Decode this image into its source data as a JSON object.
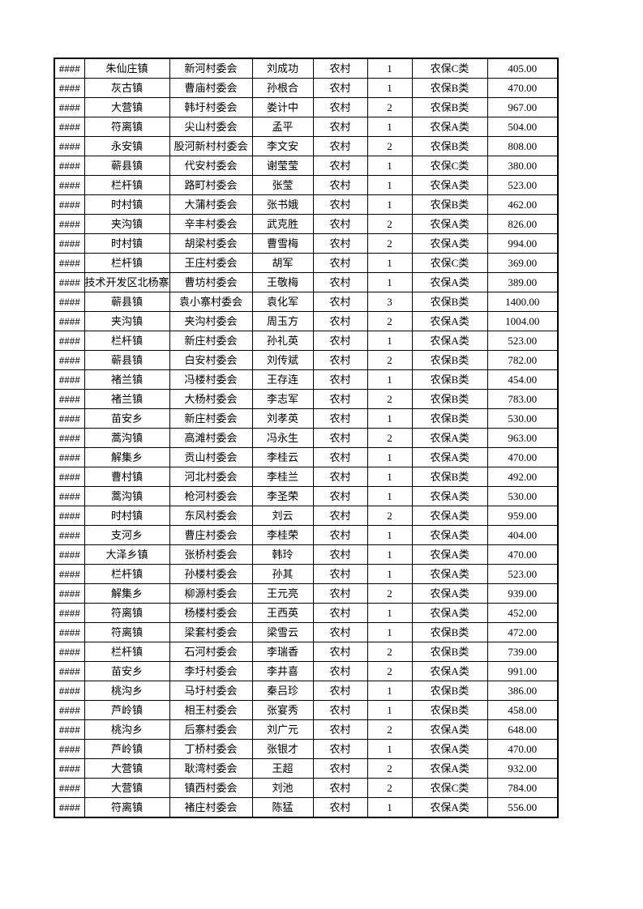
{
  "page": {
    "background": "#ffffff",
    "text_color": "#000000",
    "border_color": "#000000"
  },
  "table": {
    "rows": [
      {
        "overflow": "####",
        "town": "朱仙庄镇",
        "village": "新河村委会",
        "person": "刘成功",
        "area": "农村",
        "count": "1",
        "category": "农保C类",
        "amount": "405.00"
      },
      {
        "overflow": "####",
        "town": "灰古镇",
        "village": "曹庙村委会",
        "person": "孙根合",
        "area": "农村",
        "count": "1",
        "category": "农保B类",
        "amount": "470.00"
      },
      {
        "overflow": "####",
        "town": "大营镇",
        "village": "韩圩村委会",
        "person": "娄计中",
        "area": "农村",
        "count": "2",
        "category": "农保B类",
        "amount": "967.00"
      },
      {
        "overflow": "####",
        "town": "符离镇",
        "village": "尖山村委会",
        "person": "孟平",
        "area": "农村",
        "count": "1",
        "category": "农保A类",
        "amount": "504.00"
      },
      {
        "overflow": "####",
        "town": "永安镇",
        "village": "股河新村村委会",
        "person": "李文安",
        "area": "农村",
        "count": "2",
        "category": "农保B类",
        "amount": "808.00"
      },
      {
        "overflow": "####",
        "town": "蕲县镇",
        "village": "代安村委会",
        "person": "谢莹莹",
        "area": "农村",
        "count": "1",
        "category": "农保C类",
        "amount": "380.00"
      },
      {
        "overflow": "####",
        "town": "栏杆镇",
        "village": "路町村委会",
        "person": "张莹",
        "area": "农村",
        "count": "1",
        "category": "农保A类",
        "amount": "523.00"
      },
      {
        "overflow": "####",
        "town": "时村镇",
        "village": "大蒲村委会",
        "person": "张书娥",
        "area": "农村",
        "count": "1",
        "category": "农保B类",
        "amount": "462.00"
      },
      {
        "overflow": "####",
        "town": "夹沟镇",
        "village": "辛丰村委会",
        "person": "武克胜",
        "area": "农村",
        "count": "2",
        "category": "农保A类",
        "amount": "826.00"
      },
      {
        "overflow": "####",
        "town": "时村镇",
        "village": "胡梁村委会",
        "person": "曹雪梅",
        "area": "农村",
        "count": "2",
        "category": "农保A类",
        "amount": "994.00"
      },
      {
        "overflow": "####",
        "town": "栏杆镇",
        "village": "王庄村委会",
        "person": "胡军",
        "area": "农村",
        "count": "1",
        "category": "农保C类",
        "amount": "369.00"
      },
      {
        "overflow": "####",
        "town": "技术开发区北杨寨",
        "village": "曹坊村委会",
        "person": "王敬梅",
        "area": "农村",
        "count": "1",
        "category": "农保A类",
        "amount": "389.00"
      },
      {
        "overflow": "####",
        "town": "蕲县镇",
        "village": "袁小寨村委会",
        "person": "袁化军",
        "area": "农村",
        "count": "3",
        "category": "农保B类",
        "amount": "1400.00"
      },
      {
        "overflow": "####",
        "town": "夹沟镇",
        "village": "夹沟村委会",
        "person": "周玉方",
        "area": "农村",
        "count": "2",
        "category": "农保A类",
        "amount": "1004.00"
      },
      {
        "overflow": "####",
        "town": "栏杆镇",
        "village": "新庄村委会",
        "person": "孙礼英",
        "area": "农村",
        "count": "1",
        "category": "农保A类",
        "amount": "523.00"
      },
      {
        "overflow": "####",
        "town": "蕲县镇",
        "village": "白安村委会",
        "person": "刘传斌",
        "area": "农村",
        "count": "2",
        "category": "农保B类",
        "amount": "782.00"
      },
      {
        "overflow": "####",
        "town": "褚兰镇",
        "village": "冯楼村委会",
        "person": "王存连",
        "area": "农村",
        "count": "1",
        "category": "农保B类",
        "amount": "454.00"
      },
      {
        "overflow": "####",
        "town": "褚兰镇",
        "village": "大杨村委会",
        "person": "李志军",
        "area": "农村",
        "count": "2",
        "category": "农保B类",
        "amount": "783.00"
      },
      {
        "overflow": "####",
        "town": "苗安乡",
        "village": "新庄村委会",
        "person": "刘孝英",
        "area": "农村",
        "count": "1",
        "category": "农保B类",
        "amount": "530.00"
      },
      {
        "overflow": "####",
        "town": "蒿沟镇",
        "village": "高滩村委会",
        "person": "冯永生",
        "area": "农村",
        "count": "2",
        "category": "农保A类",
        "amount": "963.00"
      },
      {
        "overflow": "####",
        "town": "解集乡",
        "village": "贡山村委会",
        "person": "李桂云",
        "area": "农村",
        "count": "1",
        "category": "农保A类",
        "amount": "470.00"
      },
      {
        "overflow": "####",
        "town": "曹村镇",
        "village": "河北村委会",
        "person": "李桂兰",
        "area": "农村",
        "count": "1",
        "category": "农保B类",
        "amount": "492.00"
      },
      {
        "overflow": "####",
        "town": "蒿沟镇",
        "village": "枪河村委会",
        "person": "李圣荣",
        "area": "农村",
        "count": "1",
        "category": "农保A类",
        "amount": "530.00"
      },
      {
        "overflow": "####",
        "town": "时村镇",
        "village": "东风村委会",
        "person": "刘云",
        "area": "农村",
        "count": "2",
        "category": "农保A类",
        "amount": "959.00"
      },
      {
        "overflow": "####",
        "town": "支河乡",
        "village": "曹庄村委会",
        "person": "李桂荣",
        "area": "农村",
        "count": "1",
        "category": "农保A类",
        "amount": "404.00"
      },
      {
        "overflow": "####",
        "town": "大泽乡镇",
        "village": "张桥村委会",
        "person": "韩玲",
        "area": "农村",
        "count": "1",
        "category": "农保A类",
        "amount": "470.00"
      },
      {
        "overflow": "####",
        "town": "栏杆镇",
        "village": "孙楼村委会",
        "person": "孙其",
        "area": "农村",
        "count": "1",
        "category": "农保A类",
        "amount": "523.00"
      },
      {
        "overflow": "####",
        "town": "解集乡",
        "village": "柳源村委会",
        "person": "王元亮",
        "area": "农村",
        "count": "2",
        "category": "农保A类",
        "amount": "939.00"
      },
      {
        "overflow": "####",
        "town": "符离镇",
        "village": "杨楼村委会",
        "person": "王西英",
        "area": "农村",
        "count": "1",
        "category": "农保A类",
        "amount": "452.00"
      },
      {
        "overflow": "####",
        "town": "符离镇",
        "village": "梁套村委会",
        "person": "梁雪云",
        "area": "农村",
        "count": "1",
        "category": "农保B类",
        "amount": "472.00"
      },
      {
        "overflow": "####",
        "town": "栏杆镇",
        "village": "石河村委会",
        "person": "李瑞香",
        "area": "农村",
        "count": "2",
        "category": "农保B类",
        "amount": "739.00"
      },
      {
        "overflow": "####",
        "town": "苗安乡",
        "village": "李圩村委会",
        "person": "李井喜",
        "area": "农村",
        "count": "2",
        "category": "农保A类",
        "amount": "991.00"
      },
      {
        "overflow": "####",
        "town": "桃沟乡",
        "village": "马圩村委会",
        "person": "秦吕珍",
        "area": "农村",
        "count": "1",
        "category": "农保B类",
        "amount": "386.00"
      },
      {
        "overflow": "####",
        "town": "芦岭镇",
        "village": "相王村委会",
        "person": "张宴秀",
        "area": "农村",
        "count": "1",
        "category": "农保B类",
        "amount": "458.00"
      },
      {
        "overflow": "####",
        "town": "桃沟乡",
        "village": "后寨村委会",
        "person": "刘广元",
        "area": "农村",
        "count": "2",
        "category": "农保A类",
        "amount": "648.00"
      },
      {
        "overflow": "####",
        "town": "芦岭镇",
        "village": "丁桥村委会",
        "person": "张银才",
        "area": "农村",
        "count": "1",
        "category": "农保A类",
        "amount": "470.00"
      },
      {
        "overflow": "####",
        "town": "大营镇",
        "village": "耿湾村委会",
        "person": "王超",
        "area": "农村",
        "count": "2",
        "category": "农保A类",
        "amount": "932.00"
      },
      {
        "overflow": "####",
        "town": "大营镇",
        "village": "镇西村委会",
        "person": "刘池",
        "area": "农村",
        "count": "2",
        "category": "农保C类",
        "amount": "784.00"
      },
      {
        "overflow": "####",
        "town": "符离镇",
        "village": "褚庄村委会",
        "person": "陈猛",
        "area": "农村",
        "count": "1",
        "category": "农保A类",
        "amount": "556.00"
      }
    ]
  }
}
